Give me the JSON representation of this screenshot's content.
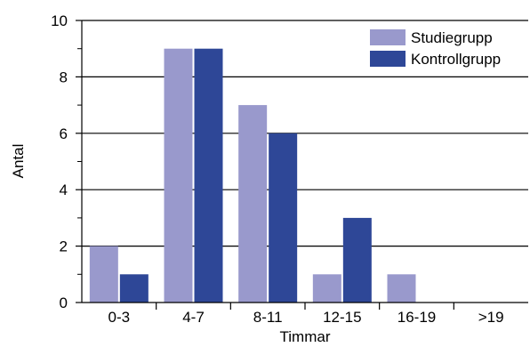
{
  "chart_data": {
    "type": "bar",
    "title": "",
    "xlabel": "Timmar",
    "ylabel": "Antal",
    "categories": [
      "0-3",
      "4-7",
      "8-11",
      "12-15",
      "16-19",
      ">19"
    ],
    "series": [
      {
        "name": "Studiegrupp",
        "values": [
          2,
          9,
          7,
          1,
          1,
          0
        ],
        "color": "#9999cc"
      },
      {
        "name": "Kontrollgrupp",
        "values": [
          1,
          9,
          6,
          3,
          0,
          0
        ],
        "color": "#2e4797"
      }
    ],
    "ylim": [
      0,
      10
    ],
    "yticks": [
      0,
      2,
      4,
      6,
      8,
      10
    ],
    "grid": true,
    "legend_position": "top-right"
  }
}
